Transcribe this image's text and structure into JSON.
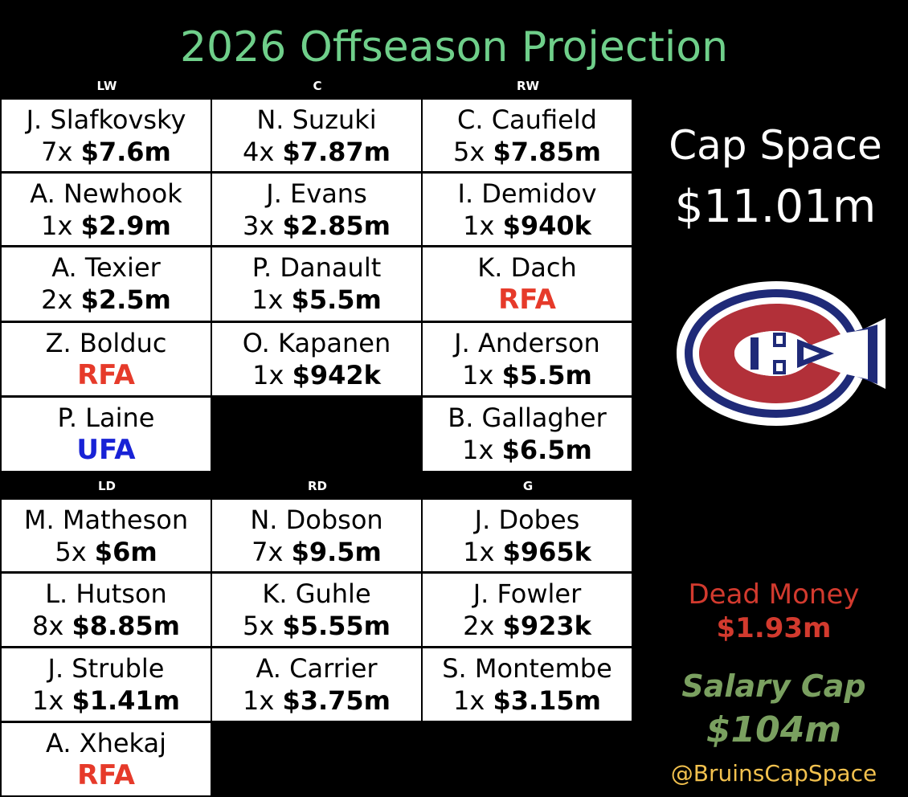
{
  "title": "2026 Offseason Projection",
  "positions": {
    "lw": "LW",
    "c": "C",
    "rw": "RW",
    "ld": "LD",
    "rd": "RD",
    "g": "G"
  },
  "forwards": {
    "lw": [
      {
        "name": "J. Slafkovsky",
        "years": "7x ",
        "amount": "$7.6m"
      },
      {
        "name": "A. Newhook",
        "years": "1x ",
        "amount": "$2.9m"
      },
      {
        "name": "A. Texier",
        "years": "2x ",
        "amount": "$2.5m"
      },
      {
        "name": "Z. Bolduc",
        "status": "RFA"
      },
      {
        "name": "P. Laine",
        "status": "UFA"
      }
    ],
    "c": [
      {
        "name": "N. Suzuki",
        "years": "4x ",
        "amount": "$7.87m"
      },
      {
        "name": "J. Evans",
        "years": "3x ",
        "amount": "$2.85m"
      },
      {
        "name": "P. Danault",
        "years": "1x ",
        "amount": "$5.5m"
      },
      {
        "name": "O. Kapanen",
        "years": "1x ",
        "amount": "$942k"
      }
    ],
    "rw": [
      {
        "name": "C. Caufield",
        "years": "5x ",
        "amount": "$7.85m"
      },
      {
        "name": "I. Demidov",
        "years": "1x ",
        "amount": "$940k"
      },
      {
        "name": "K. Dach",
        "status": "RFA"
      },
      {
        "name": "J. Anderson",
        "years": "1x ",
        "amount": "$5.5m"
      },
      {
        "name": "B. Gallagher",
        "years": "1x ",
        "amount": "$6.5m"
      }
    ]
  },
  "defense": {
    "ld": [
      {
        "name": "M. Matheson",
        "years": "5x ",
        "amount": "$6m"
      },
      {
        "name": "L. Hutson",
        "years": "8x ",
        "amount": "$8.85m"
      },
      {
        "name": "J. Struble",
        "years": "1x ",
        "amount": "$1.41m"
      },
      {
        "name": "A. Xhekaj",
        "status": "RFA"
      }
    ],
    "rd": [
      {
        "name": "N. Dobson",
        "years": "7x ",
        "amount": "$9.5m"
      },
      {
        "name": "K. Guhle",
        "years": "5x ",
        "amount": "$5.55m"
      },
      {
        "name": "A. Carrier",
        "years": "1x ",
        "amount": "$3.75m"
      }
    ],
    "g": [
      {
        "name": "J. Dobes",
        "years": "1x ",
        "amount": "$965k"
      },
      {
        "name": "J. Fowler",
        "years": "2x ",
        "amount": "$923k"
      },
      {
        "name": "S. Montembe",
        "years": "1x ",
        "amount": "$3.15m"
      }
    ]
  },
  "cap_space": {
    "label": "Cap Space",
    "value": "$11.01m"
  },
  "dead_money": {
    "label": "Dead Money",
    "value": "$1.93m"
  },
  "salary_cap": {
    "label": "Salary Cap",
    "value": "$104m"
  },
  "handle": "@BruinsCapSpace",
  "colors": {
    "title": "#6fcf8a",
    "rfa": "#e63a2a",
    "ufa": "#1822d6",
    "dead_money": "#d23a2e",
    "salary_cap": "#7aa060",
    "handle": "#f2c14e"
  },
  "logo": "montreal-canadiens-logo"
}
